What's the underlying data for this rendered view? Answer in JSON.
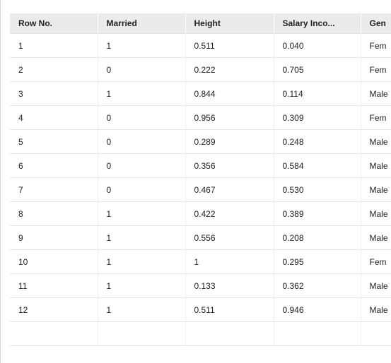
{
  "table": {
    "columns": [
      "Row No.",
      "Married",
      "Height",
      "Salary Inco...",
      "Gen"
    ],
    "rows": [
      [
        "1",
        "1",
        "0.511",
        "0.040",
        "Fem"
      ],
      [
        "2",
        "0",
        "0.222",
        "0.705",
        "Fem"
      ],
      [
        "3",
        "1",
        "0.844",
        "0.114",
        "Male"
      ],
      [
        "4",
        "0",
        "0.956",
        "0.309",
        "Fem"
      ],
      [
        "5",
        "0",
        "0.289",
        "0.248",
        "Male"
      ],
      [
        "6",
        "0",
        "0.356",
        "0.584",
        "Male"
      ],
      [
        "7",
        "0",
        "0.467",
        "0.530",
        "Male"
      ],
      [
        "8",
        "1",
        "0.422",
        "0.389",
        "Male"
      ],
      [
        "9",
        "1",
        "0.556",
        "0.208",
        "Male"
      ],
      [
        "10",
        "1",
        "1",
        "0.295",
        "Fem"
      ],
      [
        "11",
        "1",
        "0.133",
        "0.362",
        "Male"
      ],
      [
        "12",
        "1",
        "0.511",
        "0.946",
        "Male"
      ],
      [
        "",
        "",
        "",
        "",
        ""
      ]
    ]
  },
  "colors": {
    "header_background": "#ebebeb",
    "row_divider": "#e6e6e6",
    "text": "#222222"
  }
}
